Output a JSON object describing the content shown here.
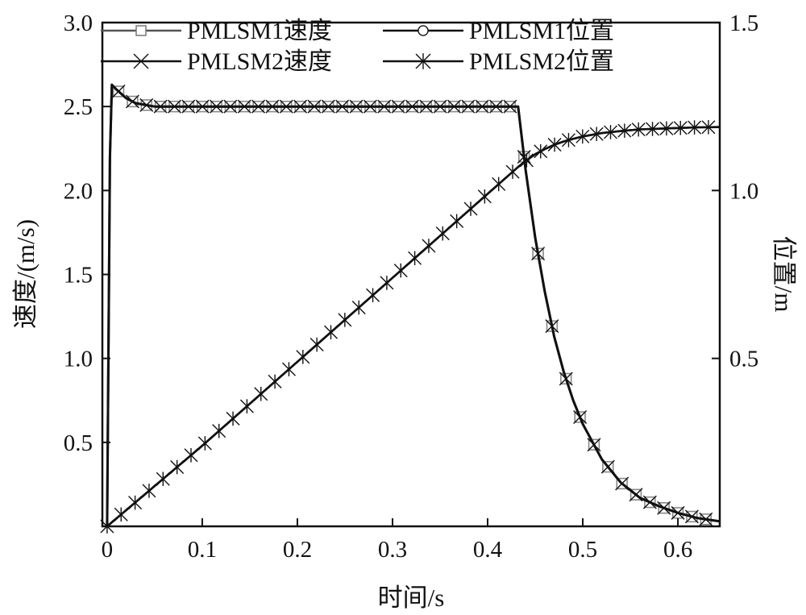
{
  "chart_data": {
    "type": "line",
    "title": "",
    "xlabel": "时间/s",
    "ylabel": "速度/(m/s)",
    "ylabel_right": "位置/m",
    "xlim": [
      -0.005,
      0.644
    ],
    "ylim": [
      0,
      3.0
    ],
    "ylim_right": [
      0,
      1.5
    ],
    "xticks": [
      "0",
      "0.1",
      "0.2",
      "0.3",
      "0.4",
      "0.5",
      "0.6"
    ],
    "xtick_values": [
      0,
      0.1,
      0.2,
      0.3,
      0.4,
      0.5,
      0.6
    ],
    "yticks": [
      "0.5",
      "1.0",
      "1.5",
      "2.0",
      "2.5",
      "3.0"
    ],
    "ytick_values": [
      0.5,
      1.0,
      1.5,
      2.0,
      2.5,
      3.0
    ],
    "yticks_right": [
      "0.5",
      "1.0",
      "1.5"
    ],
    "ytick_values_right": [
      0.5,
      1.0,
      1.5
    ],
    "grid": false,
    "legend_position": "top",
    "speed_x": [
      0,
      0.003,
      0.005,
      0.01,
      0.02,
      0.03,
      0.04,
      0.05,
      0.1,
      0.2,
      0.3,
      0.4,
      0.432,
      0.44,
      0.45,
      0.46,
      0.47,
      0.48,
      0.49,
      0.5,
      0.52,
      0.54,
      0.56,
      0.58,
      0.6,
      0.62,
      0.644
    ],
    "position_x": [
      0,
      0.1,
      0.2,
      0.3,
      0.4,
      0.432,
      0.44,
      0.45,
      0.46,
      0.47,
      0.48,
      0.49,
      0.5,
      0.52,
      0.54,
      0.56,
      0.58,
      0.6,
      0.62,
      0.644
    ],
    "series": [
      {
        "name": "PMLSM1速度",
        "axis": "left",
        "kind": "speed",
        "marker": "square",
        "color": "#555555",
        "values": [
          0,
          2.2,
          2.63,
          2.6,
          2.55,
          2.52,
          2.51,
          2.5,
          2.5,
          2.5,
          2.5,
          2.5,
          2.5,
          2.12,
          1.72,
          1.4,
          1.13,
          0.92,
          0.75,
          0.61,
          0.4,
          0.26,
          0.17,
          0.12,
          0.08,
          0.05,
          0.03
        ]
      },
      {
        "name": "PMLSM1位置",
        "axis": "right",
        "kind": "position",
        "marker": "circle",
        "color": "#111111",
        "values": [
          0,
          0.24,
          0.49,
          0.74,
          0.99,
          1.07,
          1.088,
          1.108,
          1.123,
          1.136,
          1.146,
          1.154,
          1.161,
          1.171,
          1.177,
          1.182,
          1.184,
          1.186,
          1.188,
          1.189
        ]
      },
      {
        "name": "PMLSM2速度",
        "axis": "left",
        "kind": "speed",
        "marker": "x",
        "color": "#111111",
        "values": [
          0,
          2.2,
          2.63,
          2.6,
          2.55,
          2.52,
          2.51,
          2.5,
          2.5,
          2.5,
          2.5,
          2.5,
          2.5,
          2.12,
          1.72,
          1.4,
          1.13,
          0.92,
          0.75,
          0.61,
          0.4,
          0.26,
          0.17,
          0.12,
          0.08,
          0.05,
          0.03
        ]
      },
      {
        "name": "PMLSM2位置",
        "axis": "right",
        "kind": "position",
        "marker": "asterisk",
        "color": "#111111",
        "values": [
          0,
          0.24,
          0.49,
          0.74,
          0.99,
          1.07,
          1.088,
          1.108,
          1.123,
          1.136,
          1.146,
          1.154,
          1.161,
          1.171,
          1.177,
          1.182,
          1.184,
          1.186,
          1.188,
          1.189
        ]
      }
    ]
  }
}
